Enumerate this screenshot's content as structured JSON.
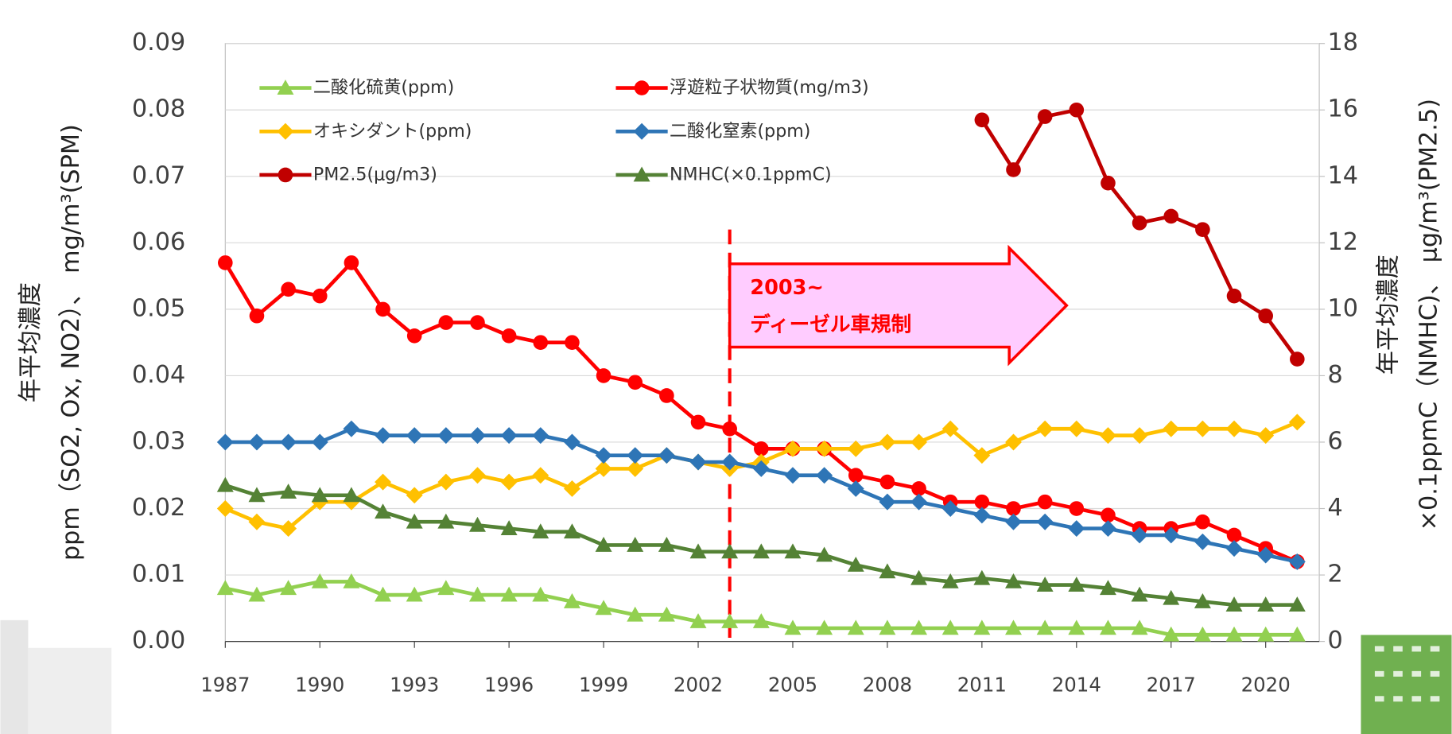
{
  "chart_data": {
    "type": "line",
    "x": [
      1987,
      1988,
      1989,
      1990,
      1991,
      1992,
      1993,
      1994,
      1995,
      1996,
      1997,
      1998,
      1999,
      2000,
      2001,
      2002,
      2003,
      2004,
      2005,
      2006,
      2007,
      2008,
      2009,
      2010,
      2011,
      2012,
      2013,
      2014,
      2015,
      2016,
      2017,
      2018,
      2019,
      2020,
      2021
    ],
    "xlim": [
      1987,
      2021.7
    ],
    "xticks": [
      1987,
      1990,
      1993,
      1996,
      1999,
      2002,
      2005,
      2008,
      2011,
      2014,
      2017,
      2020
    ],
    "ylim": [
      0,
      0.09
    ],
    "yticks": [
      {
        "value": 0,
        "label": "0.00"
      },
      0.01,
      0.02,
      0.03,
      0.04,
      0.05,
      0.06,
      0.07,
      0.08,
      0.09
    ],
    "y2lim": [
      0,
      18
    ],
    "y2ticks": [
      0,
      2,
      4,
      6,
      8,
      10,
      12,
      14,
      16,
      18
    ],
    "ylabel": [
      "年平均濃度",
      "ppm（SO2, Ox, NO2）、 mg/m³(SPM)"
    ],
    "y2label": [
      "年平均濃度",
      "×0.1ppmC（NMHC)、 μg/m³(PM2.5)"
    ],
    "grid": true,
    "legend": "top-left",
    "annotation": {
      "x": 2003,
      "lines": [
        "2003~",
        "ディーゼル車規制"
      ],
      "color": "#ff0000"
    },
    "series": [
      {
        "name": "二酸化硫黄(ppm)",
        "color": "#92d050",
        "marker": "triangle",
        "values": [
          0.008,
          0.007,
          0.008,
          0.009,
          0.009,
          0.007,
          0.007,
          0.008,
          0.007,
          0.007,
          0.007,
          0.006,
          0.005,
          0.004,
          0.004,
          0.003,
          0.003,
          0.003,
          0.002,
          0.002,
          0.002,
          0.002,
          0.002,
          0.002,
          0.002,
          0.002,
          0.002,
          0.002,
          0.002,
          0.002,
          0.001,
          0.001,
          0.001,
          0.001,
          0.001
        ]
      },
      {
        "name": "浮遊粒子状物質(mg/m3)",
        "color": "#ff0000",
        "marker": "circle",
        "values": [
          0.057,
          0.049,
          0.053,
          0.052,
          0.057,
          0.05,
          0.046,
          0.048,
          0.048,
          0.046,
          0.045,
          0.045,
          0.04,
          0.039,
          0.037,
          0.033,
          0.032,
          0.029,
          0.029,
          0.029,
          0.025,
          0.024,
          0.023,
          0.021,
          0.021,
          0.02,
          0.021,
          0.02,
          0.019,
          0.017,
          0.017,
          0.018,
          0.016,
          0.014,
          0.012
        ]
      },
      {
        "name": "オキシダント(ppm)",
        "color": "#ffc000",
        "marker": "diamond",
        "values": [
          0.02,
          0.018,
          0.017,
          0.021,
          0.021,
          0.024,
          0.022,
          0.024,
          0.025,
          0.024,
          0.025,
          0.023,
          0.026,
          0.026,
          0.028,
          0.027,
          0.026,
          0.027,
          0.029,
          0.029,
          0.029,
          0.03,
          0.03,
          0.032,
          0.028,
          0.03,
          0.032,
          0.032,
          0.031,
          0.031,
          0.032,
          0.032,
          0.032,
          0.031,
          0.033
        ]
      },
      {
        "name": "二酸化窒素(ppm)",
        "color": "#2e75b6",
        "marker": "diamond",
        "values": [
          0.03,
          0.03,
          0.03,
          0.03,
          0.032,
          0.031,
          0.031,
          0.031,
          0.031,
          0.031,
          0.031,
          0.03,
          0.028,
          0.028,
          0.028,
          0.027,
          0.027,
          0.026,
          0.025,
          0.025,
          0.023,
          0.021,
          0.021,
          0.02,
          0.019,
          0.018,
          0.018,
          0.017,
          0.017,
          0.016,
          0.016,
          0.015,
          0.014,
          0.013,
          0.012
        ]
      },
      {
        "name": "PM2.5(μg/m3)",
        "color": "#c00000",
        "marker": "circle",
        "axis": "y2",
        "values": [
          null,
          null,
          null,
          null,
          null,
          null,
          null,
          null,
          null,
          null,
          null,
          null,
          null,
          null,
          null,
          null,
          null,
          null,
          null,
          null,
          null,
          null,
          null,
          null,
          15.7,
          14.2,
          15.8,
          16.0,
          13.8,
          12.6,
          12.8,
          12.4,
          10.4,
          9.8,
          8.5
        ]
      },
      {
        "name": "NMHC(×0.1ppmC)",
        "color": "#548235",
        "marker": "triangle",
        "axis": "y2",
        "values": [
          4.7,
          4.4,
          4.5,
          4.4,
          4.4,
          3.9,
          3.6,
          3.6,
          3.5,
          3.4,
          3.3,
          3.3,
          2.9,
          2.9,
          2.9,
          2.7,
          2.7,
          2.7,
          2.7,
          2.6,
          2.3,
          2.1,
          1.9,
          1.8,
          1.9,
          1.8,
          1.7,
          1.7,
          1.6,
          1.4,
          1.3,
          1.2,
          1.1,
          1.1,
          1.1
        ]
      }
    ]
  }
}
